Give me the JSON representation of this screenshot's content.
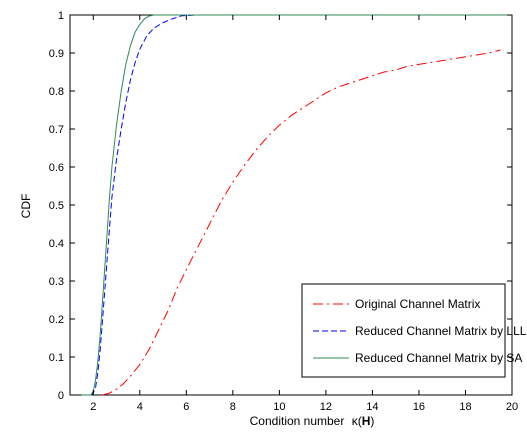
{
  "chart_data": {
    "type": "line",
    "xlabel": "Condition number",
    "xlabel_symbol": "κ(",
    "xlabel_matrix": "H",
    "xlabel_close": ")",
    "ylabel": "CDF",
    "xlim": [
      1,
      20
    ],
    "ylim": [
      0,
      1
    ],
    "xticks": [
      2,
      4,
      6,
      8,
      10,
      12,
      14,
      16,
      18,
      20
    ],
    "yticks": [
      0,
      0.1,
      0.2,
      0.3,
      0.4,
      0.5,
      0.6,
      0.7,
      0.8,
      0.9,
      1
    ],
    "xtick_labels": [
      "2",
      "4",
      "6",
      "8",
      "10",
      "12",
      "14",
      "16",
      "18",
      "20"
    ],
    "ytick_labels": [
      "0",
      "0.1",
      "0.2",
      "0.3",
      "0.4",
      "0.5",
      "0.6",
      "0.7",
      "0.8",
      "0.9",
      "1"
    ],
    "grid": false,
    "legend_position": "bottom-right",
    "series": [
      {
        "name": "Original Channel Matrix",
        "color": "#ff0000",
        "dash": "dashdot",
        "x": [
          2.4,
          2.7,
          3.0,
          3.3,
          3.6,
          4.0,
          4.4,
          4.8,
          5.2,
          5.6,
          6.0,
          6.5,
          7.0,
          7.5,
          8.0,
          8.5,
          9.0,
          9.5,
          10.0,
          10.5,
          11.0,
          11.5,
          12.0,
          12.5,
          13.0,
          13.5,
          14.0,
          14.5,
          15.0,
          15.5,
          16.0,
          16.5,
          17.0,
          17.5,
          18.0,
          18.5,
          19.0,
          19.5
        ],
        "y": [
          0.0,
          0.005,
          0.015,
          0.03,
          0.05,
          0.08,
          0.12,
          0.17,
          0.22,
          0.28,
          0.33,
          0.39,
          0.45,
          0.51,
          0.56,
          0.605,
          0.645,
          0.68,
          0.71,
          0.735,
          0.755,
          0.775,
          0.795,
          0.81,
          0.82,
          0.83,
          0.84,
          0.85,
          0.855,
          0.865,
          0.87,
          0.875,
          0.88,
          0.885,
          0.89,
          0.895,
          0.9,
          0.908
        ]
      },
      {
        "name": "Reduced Channel Matrix by LLL",
        "color": "#0000ff",
        "dash": "dashed",
        "x": [
          1.5,
          1.9,
          2.0,
          2.1,
          2.2,
          2.3,
          2.4,
          2.5,
          2.6,
          2.7,
          2.8,
          3.0,
          3.2,
          3.4,
          3.6,
          3.8,
          4.0,
          4.3,
          4.6,
          5.0,
          5.4,
          5.8,
          6.5,
          8.0,
          10.0,
          14.0,
          20.0
        ],
        "y": [
          0.0,
          0.0,
          0.005,
          0.02,
          0.06,
          0.12,
          0.2,
          0.28,
          0.36,
          0.44,
          0.52,
          0.62,
          0.7,
          0.77,
          0.83,
          0.875,
          0.91,
          0.945,
          0.965,
          0.98,
          0.99,
          0.998,
          1.0,
          1.0,
          1.0,
          1.0,
          1.0
        ]
      },
      {
        "name": "Reduced Channel Matrix by SA",
        "color": "#2e8b57",
        "dash": "solid",
        "x": [
          1.5,
          1.9,
          2.0,
          2.1,
          2.2,
          2.3,
          2.4,
          2.5,
          2.6,
          2.7,
          2.8,
          3.0,
          3.2,
          3.4,
          3.6,
          3.8,
          4.0,
          4.2,
          4.4,
          4.6,
          5.0,
          6.0,
          8.0,
          12.0,
          20.0
        ],
        "y": [
          0.0,
          0.0,
          0.01,
          0.04,
          0.09,
          0.16,
          0.25,
          0.34,
          0.43,
          0.52,
          0.6,
          0.71,
          0.8,
          0.87,
          0.92,
          0.955,
          0.975,
          0.99,
          0.997,
          1.0,
          1.0,
          1.0,
          1.0,
          1.0,
          1.0
        ]
      }
    ]
  }
}
